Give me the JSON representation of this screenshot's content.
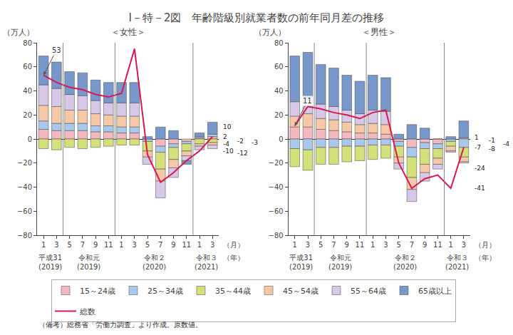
{
  "chart_data": [
    {
      "type": "bar",
      "stacked": true,
      "title": "I－特－2図　年齢階級別就業者数の前年同月差の推移",
      "subtitle": "＜女性＞",
      "y_label": "（万人）",
      "x_label": "（月）",
      "categories": [
        "1",
        "3",
        "5",
        "7",
        "9",
        "11",
        "1",
        "3",
        "5",
        "7",
        "9",
        "11",
        "1",
        "3"
      ],
      "x_groups": [
        {
          "label": "平成31\n(2019)",
          "count": 2
        },
        {
          "label": "令和元\n(2019)",
          "count": 4
        },
        {
          "label": "令和２\n(2020)",
          "count": 6
        },
        {
          "label": "令和３\n(2021)",
          "count": 2
        }
      ],
      "x_group_label": "（年）",
      "series": [
        {
          "name": "15～24歳",
          "color": "#f5b8be",
          "values": [
            8,
            7,
            7,
            7,
            6,
            6,
            5,
            5,
            0,
            -6,
            -4,
            -2,
            1,
            2
          ]
        },
        {
          "name": "25～34歳",
          "color": "#aac8ee",
          "values": [
            7,
            6,
            6,
            6,
            5,
            5,
            5,
            5,
            -2,
            -5,
            -3,
            -2,
            1,
            2
          ]
        },
        {
          "name": "35～44歳",
          "color": "#d4e07a",
          "values": [
            -8,
            -9,
            -7,
            -8,
            -7,
            -6,
            -5,
            -5,
            -8,
            -14,
            -10,
            -6,
            -4,
            -3
          ]
        },
        {
          "name": "45～54歳",
          "color": "#f5c8a8",
          "values": [
            13,
            14,
            11,
            11,
            10,
            9,
            9,
            9,
            -5,
            -10,
            -7,
            -4,
            -2,
            -2
          ]
        },
        {
          "name": "55～64歳",
          "color": "#d8c8e8",
          "values": [
            17,
            15,
            13,
            12,
            11,
            10,
            11,
            11,
            -6,
            -14,
            -8,
            -4,
            -3,
            -3
          ]
        },
        {
          "name": "65歳以上",
          "color": "#7898cc",
          "values": [
            24,
            22,
            19,
            19,
            17,
            17,
            17,
            17,
            2,
            10,
            7,
            -3,
            3,
            10
          ]
        },
        {
          "name": "総数",
          "type": "line",
          "color": "#d81850",
          "values": [
            53,
            47,
            43,
            41,
            37,
            35,
            38,
            75,
            -13,
            -36,
            -28,
            -18,
            -10,
            2
          ]
        }
      ],
      "end_values": [
        10,
        2,
        -4,
        -12,
        -2,
        -3,
        -10
      ],
      "annotations": [
        {
          "text": "53",
          "x": 0,
          "y": 53
        }
      ],
      "ylim": [
        -80,
        80
      ],
      "yticks": [
        {
          "value": -80,
          "label": "−80"
        },
        {
          "value": -60,
          "label": "−60"
        },
        {
          "value": -40,
          "label": "−40"
        },
        {
          "value": -20,
          "label": "−20"
        },
        0,
        20,
        40,
        60,
        80
      ],
      "grid": false,
      "legend": "bottom",
      "note": "（備考）総務省「労働力調査」より作成。原数値。"
    },
    {
      "type": "bar",
      "stacked": true,
      "subtitle": "＜男性＞",
      "y_label": "（万人）",
      "x_label": "（月）",
      "categories": [
        "1",
        "3",
        "5",
        "7",
        "9",
        "11",
        "1",
        "3",
        "5",
        "7",
        "9",
        "11",
        "1",
        "3"
      ],
      "x_groups": [
        {
          "label": "平成31\n(2019)",
          "count": 2
        },
        {
          "label": "令和元\n(2019)",
          "count": 4
        },
        {
          "label": "令和２\n(2020)",
          "count": 6
        },
        {
          "label": "令和３\n(2021)",
          "count": 2
        }
      ],
      "x_group_label": "（年）",
      "series": [
        {
          "name": "15～24歳",
          "color": "#f5b8be",
          "values": [
            10,
            10,
            8,
            7,
            6,
            5,
            5,
            4,
            -2,
            -7,
            -3,
            -4,
            0,
            1
          ]
        },
        {
          "name": "25～34歳",
          "color": "#aac8ee",
          "values": [
            -8,
            -9,
            -7,
            -7,
            -6,
            -6,
            -5,
            -5,
            -4,
            -8,
            -5,
            -4,
            -2,
            -7
          ]
        },
        {
          "name": "35～44歳",
          "color": "#d4e07a",
          "values": [
            -15,
            -17,
            -14,
            -14,
            -13,
            -12,
            -12,
            -11,
            -9,
            -17,
            -13,
            -8,
            -4,
            -8
          ]
        },
        {
          "name": "45～54歳",
          "color": "#f5c8a8",
          "values": [
            9,
            11,
            9,
            9,
            8,
            7,
            8,
            8,
            -5,
            -10,
            -7,
            -5,
            -4,
            -4
          ]
        },
        {
          "name": "55～64歳",
          "color": "#d8c8e8",
          "values": [
            12,
            14,
            12,
            11,
            10,
            9,
            11,
            11,
            -5,
            -10,
            -7,
            -4,
            -1,
            -1
          ]
        },
        {
          "name": "65歳以上",
          "color": "#7898cc",
          "values": [
            38,
            37,
            33,
            32,
            29,
            27,
            29,
            28,
            4,
            12,
            9,
            0,
            2,
            14
          ]
        },
        {
          "name": "総数",
          "type": "line",
          "color": "#d81850",
          "values": [
            11,
            27,
            25,
            22,
            20,
            17,
            22,
            24,
            -20,
            -41,
            -33,
            -30,
            -41,
            -7
          ]
        }
      ],
      "end_values": [
        1,
        -8,
        -7,
        -24,
        -1,
        -4,
        -41
      ],
      "annotations": [
        {
          "text": "11",
          "x": 0,
          "y": 11
        }
      ],
      "ylim": [
        -80,
        80
      ],
      "yticks": [
        {
          "value": -80,
          "label": "−80"
        },
        {
          "value": -60,
          "label": "−60"
        },
        {
          "value": -40,
          "label": "−40"
        },
        {
          "value": -20,
          "label": "−20"
        },
        0,
        20,
        40,
        60,
        80
      ],
      "grid": false
    }
  ]
}
